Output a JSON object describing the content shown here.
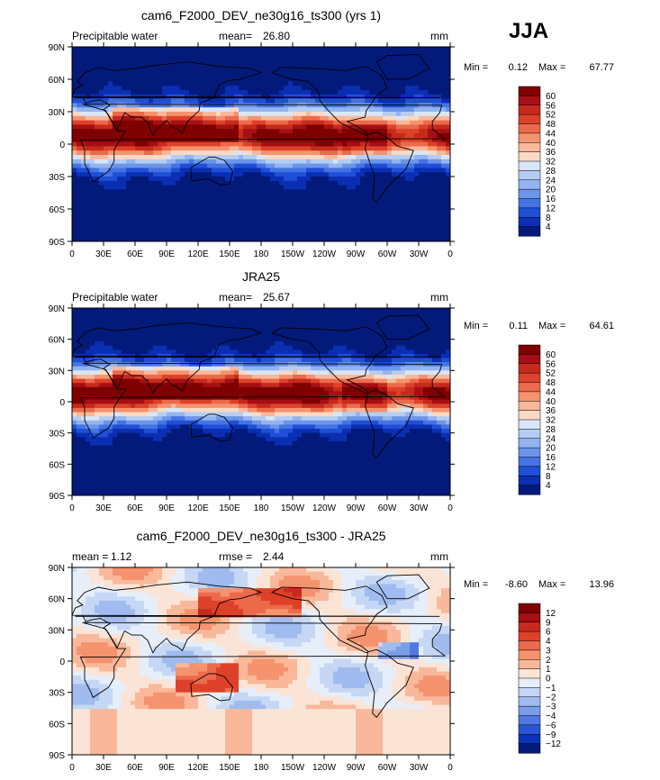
{
  "season": "JJA",
  "chart_data": [
    {
      "type": "heatmap",
      "title": "cam6_F2000_DEV_ne30g16_ts300 (yrs 1)",
      "left_label": "Precipitable water",
      "stat1_label": "mean=",
      "stat1_value": "26.80",
      "stat2_label": "",
      "stat2_value": "",
      "units": "mm",
      "min_label": "Min =",
      "min_value": "0.12",
      "max_label": "Max =",
      "max_value": "67.77",
      "xticks": [
        "0",
        "30E",
        "60E",
        "90E",
        "120E",
        "150E",
        "180",
        "150W",
        "120W",
        "90W",
        "60W",
        "30W",
        "0"
      ],
      "yticks": [
        "90N",
        "60N",
        "30N",
        "0",
        "30S",
        "60S",
        "90S"
      ],
      "xlim": [
        0,
        360
      ],
      "ylim": [
        -90,
        90
      ],
      "levels": [
        "60",
        "56",
        "52",
        "48",
        "44",
        "40",
        "36",
        "32",
        "28",
        "24",
        "20",
        "16",
        "12",
        "8",
        "4"
      ],
      "colors": [
        "#7f0000",
        "#a50f15",
        "#c62a1c",
        "#dd4129",
        "#ec6a4c",
        "#f5936f",
        "#f9b89a",
        "#fbd9c4",
        "#d8e6f7",
        "#b5cdf2",
        "#93b4ee",
        "#6c94e9",
        "#4474e3",
        "#1f4fd6",
        "#0a2fb3",
        "#031a7a"
      ]
    },
    {
      "type": "heatmap",
      "title": "JRA25",
      "left_label": "Precipitable water",
      "stat1_label": "mean=",
      "stat1_value": "25.67",
      "stat2_label": "",
      "stat2_value": "",
      "units": "mm",
      "min_label": "Min =",
      "min_value": "0.11",
      "max_label": "Max =",
      "max_value": "64.61",
      "xticks": [
        "0",
        "30E",
        "60E",
        "90E",
        "120E",
        "150E",
        "180",
        "150W",
        "120W",
        "90W",
        "60W",
        "30W",
        "0"
      ],
      "yticks": [
        "90N",
        "60N",
        "30N",
        "0",
        "30S",
        "60S",
        "90S"
      ],
      "xlim": [
        0,
        360
      ],
      "ylim": [
        -90,
        90
      ],
      "levels": [
        "60",
        "56",
        "52",
        "48",
        "44",
        "40",
        "36",
        "32",
        "28",
        "24",
        "20",
        "16",
        "12",
        "8",
        "4"
      ],
      "colors": [
        "#7f0000",
        "#a50f15",
        "#c62a1c",
        "#dd4129",
        "#ec6a4c",
        "#f5936f",
        "#f9b89a",
        "#fbd9c4",
        "#d8e6f7",
        "#b5cdf2",
        "#93b4ee",
        "#6c94e9",
        "#4474e3",
        "#1f4fd6",
        "#0a2fb3",
        "#031a7a"
      ]
    },
    {
      "type": "heatmap",
      "title": "cam6_F2000_DEV_ne30g16_ts300 - JRA25",
      "left_label": "",
      "stat1_label": "mean =",
      "stat1_value": "1.12",
      "stat2_label": "rmse =",
      "stat2_value": "2.44",
      "units": "mm",
      "min_label": "Min =",
      "min_value": "-8.60",
      "max_label": "Max =",
      "max_value": "13.96",
      "xticks": [
        "0",
        "30E",
        "60E",
        "90E",
        "120E",
        "150E",
        "180",
        "150W",
        "120W",
        "90W",
        "60W",
        "30W",
        "0"
      ],
      "yticks": [
        "90N",
        "60N",
        "30N",
        "0",
        "30S",
        "60S",
        "90S"
      ],
      "xlim": [
        0,
        360
      ],
      "ylim": [
        -90,
        90
      ],
      "levels": [
        "12",
        "9",
        "6",
        "4",
        "3",
        "2",
        "1",
        "0",
        "−1",
        "−2",
        "−3",
        "−4",
        "−6",
        "−9",
        "−12"
      ],
      "colors": [
        "#7f0000",
        "#a50f15",
        "#c62a1c",
        "#dd4129",
        "#ec6a4c",
        "#f5936f",
        "#f9b89a",
        "#fbe4d6",
        "#e6eef9",
        "#c5d7f4",
        "#9fbbef",
        "#7a9de9",
        "#5078e2",
        "#2a55d4",
        "#0d34b8",
        "#031a7a"
      ]
    }
  ]
}
